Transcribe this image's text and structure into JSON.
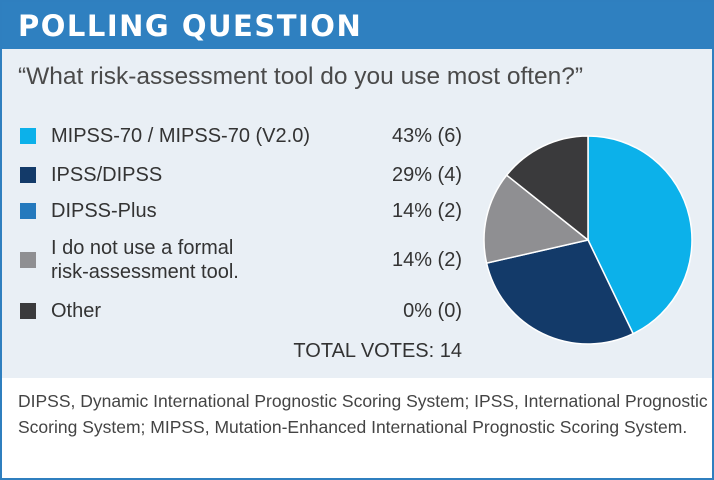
{
  "header": {
    "title": "POLLING QUESTION"
  },
  "question": "“What risk-assessment tool do you use most often?”",
  "options": [
    {
      "label_lines": [
        "MIPSS-70 / MIPSS-70 (V2.0)"
      ],
      "value_text": "43% (6)",
      "color": "#0cb1ea"
    },
    {
      "label_lines": [
        "IPSS/DIPSS"
      ],
      "value_text": "29% (4)",
      "color": "#133a69"
    },
    {
      "label_lines": [
        "DIPSS-Plus"
      ],
      "value_text": "14% (2)",
      "color": "#2479bd"
    },
    {
      "label_lines": [
        "I do not use a formal",
        "risk-assessment tool."
      ],
      "value_text": "14% (2)",
      "color": "#8f8f92"
    },
    {
      "label_lines": [
        "Other"
      ],
      "value_text": "0% (0)",
      "color": "#3a3a3c"
    }
  ],
  "total": "TOTAL VOTES: 14",
  "footnote": "DIPSS, Dynamic International Prognostic Scoring System; IPSS, International Prognostic Scoring System; MIPSS, Mutation-Enhanced International Prognostic Scoring System.",
  "chart_data": {
    "type": "pie",
    "title": "",
    "categories": [
      "MIPSS-70 / MIPSS-70 (V2.0)",
      "IPSS/DIPSS",
      "DIPSS-Plus",
      "I do not use a formal risk-assessment tool.",
      "Other"
    ],
    "values": [
      6,
      4,
      2,
      2,
      0
    ],
    "percentages": [
      43,
      29,
      14,
      14,
      0
    ],
    "colors": [
      "#0cb1ea",
      "#133a69",
      "#2479bd",
      "#8f8f92",
      "#3a3a3c"
    ],
    "pie_colors": [
      "#0cb1ea",
      "#133a69",
      "#8f8f92",
      "#3a3a3c"
    ],
    "pie_values": [
      6,
      4,
      2,
      2
    ],
    "legend": "left",
    "start_angle_deg": 0,
    "direction": "clockwise"
  }
}
